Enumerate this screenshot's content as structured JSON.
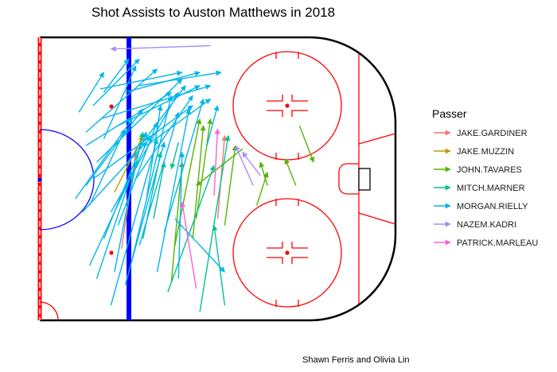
{
  "chart_data": {
    "type": "scatter",
    "title": "Shot Assists to Auston Matthews in 2018",
    "caption": "Shawn Ferris and Olivia Lin",
    "legend_title": "Passer",
    "legend_position": "right",
    "xlim": [
      0,
      100
    ],
    "ylim": [
      -42.5,
      42.5
    ],
    "grid": false,
    "series": [
      {
        "name": "JAKE.GARDINER",
        "color": "#F8766D",
        "passes": [
          {
            "x1": 23.0,
            "y1": -21.0,
            "x2": 27.0,
            "y2": 8.0
          },
          {
            "x1": 50.0,
            "y1": -12.0,
            "x2": 52.0,
            "y2": 13.0
          }
        ]
      },
      {
        "name": "JAKE.MUZZIN",
        "color": "#C49A00",
        "passes": [
          {
            "x1": 21.0,
            "y1": -4.0,
            "x2": 29.0,
            "y2": 13.0
          }
        ]
      },
      {
        "name": "JOHN.TAVARES",
        "color": "#53B400",
        "passes": [
          {
            "x1": 37.0,
            "y1": -31.0,
            "x2": 40.0,
            "y2": 5.0
          },
          {
            "x1": 44.0,
            "y1": -12.0,
            "x2": 48.0,
            "y2": 18.0
          },
          {
            "x1": 57.0,
            "y1": 9.0,
            "x2": 44.0,
            "y2": -2.0
          },
          {
            "x1": 52.0,
            "y1": -14.0,
            "x2": 55.0,
            "y2": 10.0
          },
          {
            "x1": 43.0,
            "y1": -18.0,
            "x2": 46.0,
            "y2": 16.0
          },
          {
            "x1": 73.0,
            "y1": 16.0,
            "x2": 77.0,
            "y2": 5.0
          },
          {
            "x1": 64.0,
            "y1": -2.0,
            "x2": 62.0,
            "y2": 5.0
          },
          {
            "x1": 72.0,
            "y1": -2.0,
            "x2": 69.0,
            "y2": 6.0
          },
          {
            "x1": 61.0,
            "y1": -8.0,
            "x2": 64.0,
            "y2": 2.0
          },
          {
            "x1": 38.0,
            "y1": -20.0,
            "x2": 45.0,
            "y2": 18.0
          }
        ]
      },
      {
        "name": "MITCH.MARNER",
        "color": "#00C094",
        "passes": [
          {
            "x1": 25.0,
            "y1": -6.0,
            "x2": 29.0,
            "y2": 14.0
          },
          {
            "x1": 45.0,
            "y1": -40.0,
            "x2": 53.0,
            "y2": 13.0
          },
          {
            "x1": 36.0,
            "y1": -34.0,
            "x2": 49.0,
            "y2": 4.0
          },
          {
            "x1": 52.0,
            "y1": -38.0,
            "x2": 49.0,
            "y2": -14.0
          },
          {
            "x1": 29.0,
            "y1": -18.0,
            "x2": 34.0,
            "y2": 8.0
          },
          {
            "x1": 32.0,
            "y1": -12.0,
            "x2": 35.0,
            "y2": 5.0
          },
          {
            "x1": 39.0,
            "y1": 11.0,
            "x2": 37.0,
            "y2": 3.0
          }
        ]
      },
      {
        "name": "MORGAN.RIELLY",
        "color": "#00B6EB",
        "passes": [
          {
            "x1": 15.0,
            "y1": 22.0,
            "x2": 28.0,
            "y2": 36.0
          },
          {
            "x1": 18.0,
            "y1": 12.0,
            "x2": 27.0,
            "y2": 34.0
          },
          {
            "x1": 17.0,
            "y1": 27.0,
            "x2": 40.0,
            "y2": 32.0
          },
          {
            "x1": 12.0,
            "y1": -10.0,
            "x2": 30.0,
            "y2": 11.0
          },
          {
            "x1": 13.0,
            "y1": -2.0,
            "x2": 29.0,
            "y2": 21.0
          },
          {
            "x1": 18.0,
            "y1": -18.0,
            "x2": 30.0,
            "y2": 14.0
          },
          {
            "x1": 14.0,
            "y1": -26.0,
            "x2": 31.0,
            "y2": 13.0
          },
          {
            "x1": 20.0,
            "y1": -38.0,
            "x2": 33.0,
            "y2": 12.0
          },
          {
            "x1": 24.0,
            "y1": -32.0,
            "x2": 35.0,
            "y2": 11.0
          },
          {
            "x1": 16.0,
            "y1": 5.0,
            "x2": 40.0,
            "y2": 30.0
          },
          {
            "x1": 13.0,
            "y1": 10.0,
            "x2": 37.0,
            "y2": 26.0
          },
          {
            "x1": 28.0,
            "y1": -20.0,
            "x2": 39.0,
            "y2": 20.0
          },
          {
            "x1": 26.0,
            "y1": -24.0,
            "x2": 37.0,
            "y2": 25.0
          },
          {
            "x1": 33.0,
            "y1": -28.0,
            "x2": 42.0,
            "y2": 21.0
          },
          {
            "x1": 20.0,
            "y1": -10.0,
            "x2": 39.0,
            "y2": 26.0
          },
          {
            "x1": 22.0,
            "y1": -14.0,
            "x2": 33.0,
            "y2": 17.0
          },
          {
            "x1": 10.0,
            "y1": -6.0,
            "x2": 26.0,
            "y2": 18.0
          },
          {
            "x1": 15.0,
            "y1": 0.0,
            "x2": 43.0,
            "y2": 22.0
          },
          {
            "x1": 11.0,
            "y1": 20.0,
            "x2": 18.0,
            "y2": 32.0
          },
          {
            "x1": 30.0,
            "y1": -6.0,
            "x2": 34.0,
            "y2": 22.0
          },
          {
            "x1": 18.0,
            "y1": 26.0,
            "x2": 25.0,
            "y2": 36.0
          },
          {
            "x1": 24.0,
            "y1": 4.0,
            "x2": 41.0,
            "y2": 28.0
          },
          {
            "x1": 22.0,
            "y1": 16.0,
            "x2": 45.0,
            "y2": 28.0
          },
          {
            "x1": 35.0,
            "y1": -16.0,
            "x2": 46.0,
            "y2": 24.0
          },
          {
            "x1": 27.0,
            "y1": 0.0,
            "x2": 43.0,
            "y2": 25.0
          },
          {
            "x1": 30.0,
            "y1": 10.0,
            "x2": 48.0,
            "y2": 24.0
          },
          {
            "x1": 13.0,
            "y1": 14.0,
            "x2": 33.0,
            "y2": 33.0
          },
          {
            "x1": 24.0,
            "y1": 26.0,
            "x2": 45.0,
            "y2": 32.0
          },
          {
            "x1": 28.0,
            "y1": 28.0,
            "x2": 51.0,
            "y2": 32.0
          },
          {
            "x1": 17.0,
            "y1": 18.0,
            "x2": 48.0,
            "y2": 28.0
          },
          {
            "x1": 14.0,
            "y1": -8.0,
            "x2": 24.0,
            "y2": 15.0
          },
          {
            "x1": 21.0,
            "y1": -28.0,
            "x2": 27.0,
            "y2": 5.0
          },
          {
            "x1": 39.0,
            "y1": -30.0,
            "x2": 40.0,
            "y2": 8.0
          },
          {
            "x1": 38.0,
            "y1": -12.0,
            "x2": 52.0,
            "y2": -28.0
          },
          {
            "x1": 16.0,
            "y1": -30.0,
            "x2": 26.0,
            "y2": 2.0
          },
          {
            "x1": 47.0,
            "y1": 10.0,
            "x2": 50.0,
            "y2": 22.0
          }
        ]
      },
      {
        "name": "NAZEM.KADRI",
        "color": "#A58AFF",
        "passes": [
          {
            "x1": 48.0,
            "y1": 40.0,
            "x2": 20.0,
            "y2": 39.0
          },
          {
            "x1": 60.0,
            "y1": -2.0,
            "x2": 55.0,
            "y2": 10.0
          },
          {
            "x1": 62.0,
            "y1": 1.0,
            "x2": 57.0,
            "y2": 8.0
          }
        ]
      },
      {
        "name": "PATRICK.MARLEAU",
        "color": "#FB61D7",
        "passes": [
          {
            "x1": 44.0,
            "y1": -33.0,
            "x2": 40.0,
            "y2": -7.0
          },
          {
            "x1": 49.0,
            "y1": -5.0,
            "x2": 50.0,
            "y2": 15.0
          }
        ]
      }
    ]
  }
}
